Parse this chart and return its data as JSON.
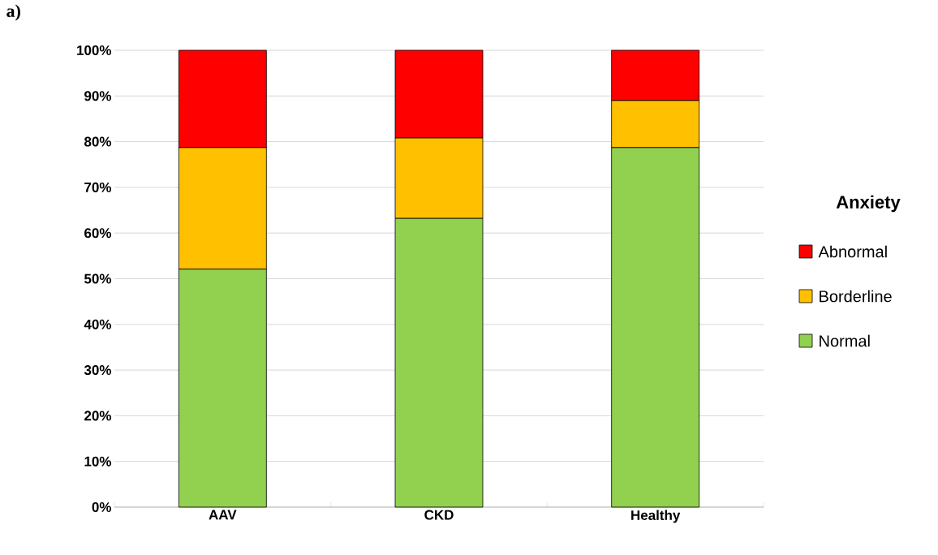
{
  "chart_data": {
    "type": "bar",
    "stacked": true,
    "categories": [
      "AAV",
      "CKD",
      "Healthy"
    ],
    "series": [
      {
        "name": "Normal",
        "color": "#92d050",
        "values": [
          52.1,
          63.2,
          78.7
        ]
      },
      {
        "name": "Borderline",
        "color": "#ffc000",
        "values": [
          26.6,
          17.6,
          10.3
        ]
      },
      {
        "name": "Abnormal",
        "color": "#ff0000",
        "values": [
          21.3,
          19.2,
          11.0
        ]
      }
    ],
    "ylim": [
      0,
      100
    ],
    "yticks": [
      {
        "value": 0,
        "label": "0%"
      },
      {
        "value": 10,
        "label": "10%"
      },
      {
        "value": 20,
        "label": "20%"
      },
      {
        "value": 30,
        "label": "30%"
      },
      {
        "value": 40,
        "label": "40%"
      },
      {
        "value": 50,
        "label": "50%"
      },
      {
        "value": 60,
        "label": "60%"
      },
      {
        "value": 70,
        "label": "70%"
      },
      {
        "value": 80,
        "label": "80%"
      },
      {
        "value": 90,
        "label": "90%"
      },
      {
        "value": 100,
        "label": "100%"
      }
    ],
    "grid": "y",
    "legend": "right",
    "legend_title": "Anxiety",
    "annotations": [
      "a)"
    ]
  }
}
